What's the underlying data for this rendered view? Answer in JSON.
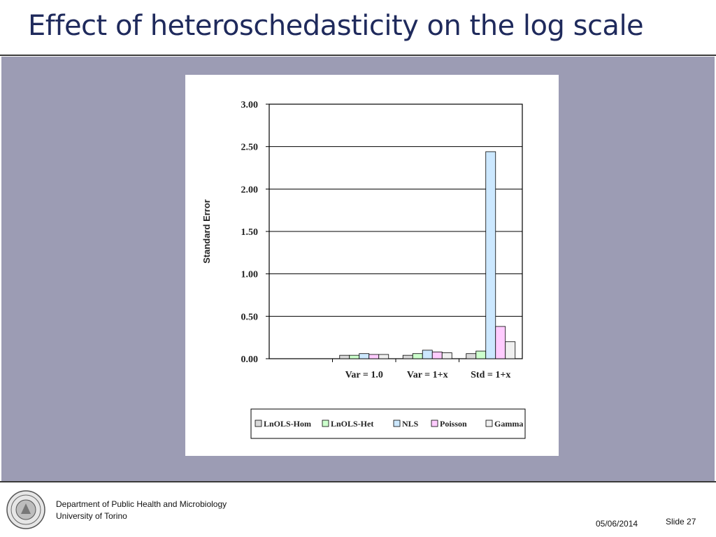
{
  "slide": {
    "title": "Effect of heteroschedasticity on the log scale"
  },
  "footer": {
    "department": "Department of Public Health and Microbiology",
    "university": "University of Torino",
    "date": "05/06/2014",
    "slide_label": "Slide 27"
  },
  "colors": {
    "title": "#1f2a5c",
    "panel": "#9c9cb4"
  },
  "chart_data": {
    "type": "bar",
    "ylabel": "Standard Error",
    "ylim": [
      0,
      3
    ],
    "ytick_labels": [
      "0.00",
      "0.50",
      "1.00",
      "1.50",
      "2.00",
      "2.50",
      "3.00"
    ],
    "categories": [
      "",
      "Var = 1.0",
      "Var = 1+x",
      "Std = 1+x"
    ],
    "grid": true,
    "legend_position": "bottom",
    "series": [
      {
        "name": "LnOLS-Hom",
        "color": "#d9d9d9",
        "values": [
          null,
          0.04,
          0.04,
          0.06
        ]
      },
      {
        "name": "LnOLS-Het",
        "color": "#ccffcc",
        "values": [
          null,
          0.04,
          0.06,
          0.09
        ]
      },
      {
        "name": "NLS",
        "color": "#cce8ff",
        "values": [
          null,
          0.06,
          0.1,
          2.44
        ]
      },
      {
        "name": "Poisson",
        "color": "#ffccff",
        "values": [
          null,
          0.05,
          0.08,
          0.38
        ]
      },
      {
        "name": "Gamma",
        "color": "#f0f0f0",
        "values": [
          null,
          0.05,
          0.07,
          0.2
        ]
      }
    ]
  }
}
